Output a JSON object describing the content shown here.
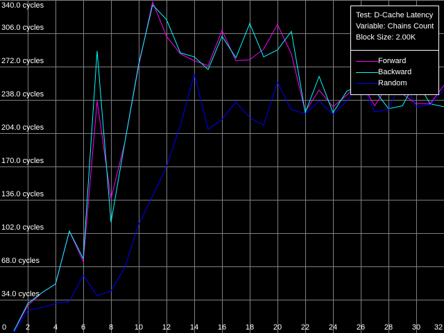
{
  "chart_data": {
    "type": "line",
    "title": "",
    "xlabel": "",
    "ylabel": "",
    "xlim": [
      0,
      32
    ],
    "ylim": [
      0,
      340
    ],
    "grid": true,
    "x_ticks": [
      "0",
      "2",
      "4",
      "6",
      "8",
      "10",
      "12",
      "14",
      "16",
      "18",
      "20",
      "22",
      "24",
      "26",
      "28",
      "30",
      "32"
    ],
    "y_ticks": [
      "340.0 cycles",
      "306.0 cycles",
      "272.0 cycles",
      "238.0 cycles",
      "204.0 cycles",
      "170.0 cycles",
      "136.0 cycles",
      "102.0 cycles",
      "68.0 cycles",
      "34.0 cycles"
    ],
    "y_tick_values": [
      340,
      306,
      272,
      238,
      204,
      170,
      136,
      102,
      68,
      34
    ],
    "info": [
      "Test: D-Cache Latency",
      "Variable: Chains Count",
      "Block Size: 2.00K"
    ],
    "legend_placement": "top-right",
    "x": [
      1,
      2,
      3,
      4,
      5,
      6,
      7,
      8,
      9,
      10,
      11,
      12,
      13,
      14,
      15,
      16,
      17,
      18,
      19,
      20,
      21,
      22,
      23,
      24,
      25,
      26,
      27,
      28,
      29,
      30,
      31,
      32
    ],
    "series": [
      {
        "name": "Forward",
        "color": "#ff00ff",
        "values": [
          2,
          28,
          41,
          50,
          104,
          73,
          237,
          137,
          195,
          273,
          338,
          303,
          285,
          278,
          273,
          309,
          278,
          279,
          290,
          315,
          285,
          226,
          248,
          231,
          243,
          257,
          232,
          254,
          244,
          234,
          234,
          253
        ]
      },
      {
        "name": "Backward",
        "color": "#00ffff",
        "values": [
          2,
          30,
          41,
          50,
          104,
          76,
          288,
          113,
          195,
          275,
          335,
          320,
          286,
          282,
          269,
          303,
          281,
          316,
          282,
          289,
          308,
          225,
          262,
          225,
          247,
          253,
          248,
          229,
          232,
          258,
          234,
          231
        ]
      },
      {
        "name": "Random",
        "color": "#0000ff",
        "values": [
          0,
          23,
          26,
          30,
          32,
          59,
          38,
          43,
          67,
          111,
          140,
          170,
          212,
          264,
          208,
          218,
          236,
          220,
          212,
          256,
          228,
          224,
          237,
          223,
          237,
          257,
          226,
          228,
          261,
          231,
          233,
          249
        ]
      }
    ],
    "colors": {
      "background": "#000000",
      "grid": "#808080",
      "text": "#ffffff"
    }
  }
}
